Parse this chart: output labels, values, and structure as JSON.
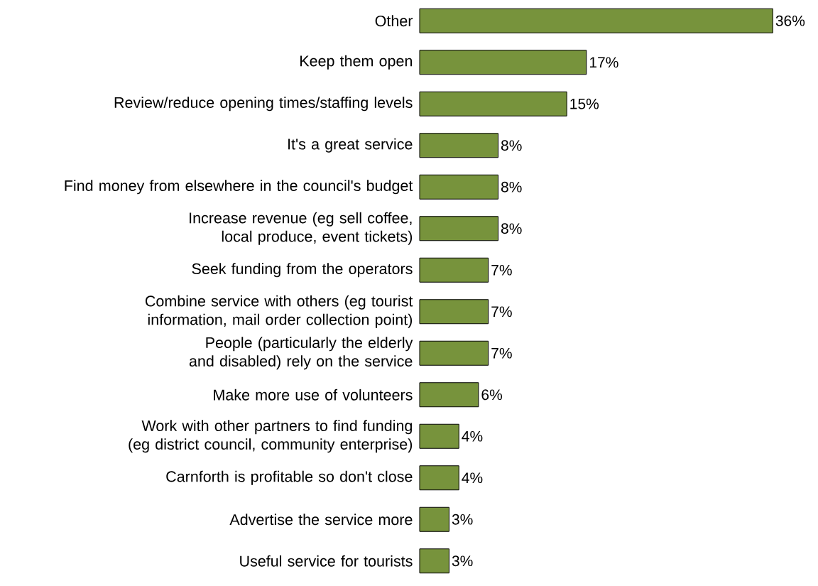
{
  "chart_data": {
    "type": "bar",
    "orientation": "horizontal",
    "color": "#77933c",
    "categories": [
      "Other",
      "Keep them open",
      "Review/reduce opening times/staffing levels",
      "It's a great service",
      "Find money from elsewhere in the council's budget",
      "Increase revenue (eg sell coffee, local produce, event tickets)",
      "Seek funding from the operators",
      "Combine service with others (eg tourist information, mail order collection point)",
      "People (particularly the elderly and disabled) rely on the service",
      "Make more use of volunteers",
      "Work with other partners to find funding (eg district council, community enterprise)",
      "Carnforth is profitable so don't close",
      "Advertise the service more",
      "Useful service for tourists"
    ],
    "values": [
      36,
      17,
      15,
      8,
      8,
      8,
      7,
      7,
      7,
      6,
      4,
      4,
      3,
      3
    ],
    "value_labels": [
      "36%",
      "17%",
      "15%",
      "8%",
      "8%",
      "8%",
      "7%",
      "7%",
      "7%",
      "6%",
      "4%",
      "4%",
      "3%",
      "3%"
    ]
  }
}
